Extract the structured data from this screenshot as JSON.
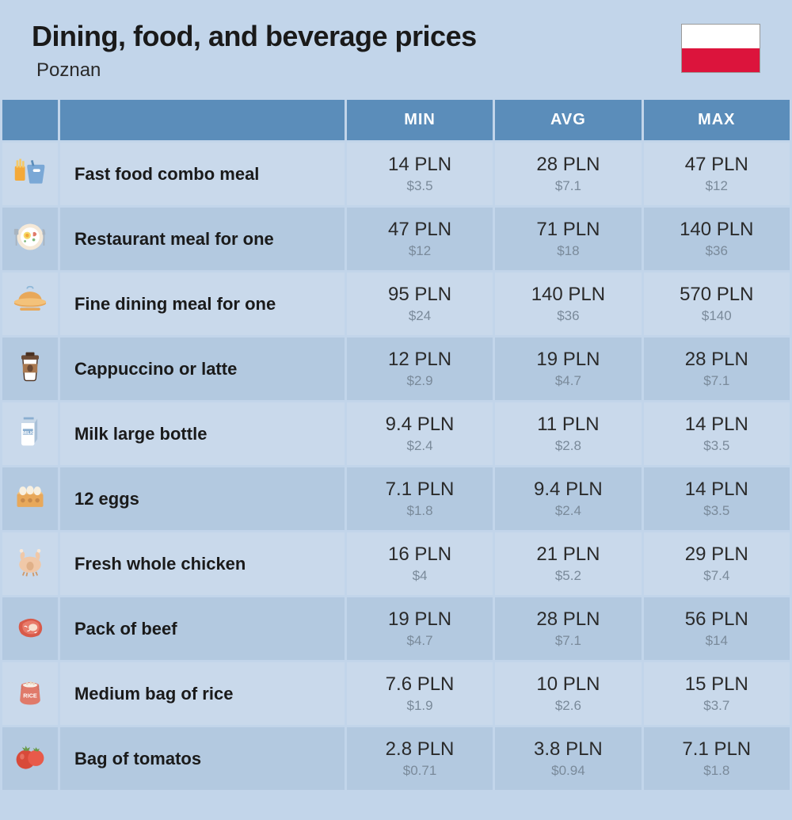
{
  "header": {
    "title": "Dining, food, and beverage prices",
    "location": "Poznan"
  },
  "flag": {
    "top_color": "#ffffff",
    "bottom_color": "#dc143c"
  },
  "columns": {
    "min": "MIN",
    "avg": "AVG",
    "max": "MAX"
  },
  "colors": {
    "page_bg": "#c2d5ea",
    "header_bg": "#5b8dba",
    "header_text": "#ffffff",
    "row_odd_bg": "#c9d9eb",
    "row_even_bg": "#b3c9e0",
    "text_primary": "#1a1a1a",
    "text_pln": "#2a2a2a",
    "text_usd": "#7a8a9a"
  },
  "rows": [
    {
      "icon": "fast-food",
      "label": "Fast food combo meal",
      "min_pln": "14 PLN",
      "min_usd": "$3.5",
      "avg_pln": "28 PLN",
      "avg_usd": "$7.1",
      "max_pln": "47 PLN",
      "max_usd": "$12"
    },
    {
      "icon": "restaurant",
      "label": "Restaurant meal for one",
      "min_pln": "47 PLN",
      "min_usd": "$12",
      "avg_pln": "71 PLN",
      "avg_usd": "$18",
      "max_pln": "140 PLN",
      "max_usd": "$36"
    },
    {
      "icon": "fine-dining",
      "label": "Fine dining meal for one",
      "min_pln": "95 PLN",
      "min_usd": "$24",
      "avg_pln": "140 PLN",
      "avg_usd": "$36",
      "max_pln": "570 PLN",
      "max_usd": "$140"
    },
    {
      "icon": "coffee",
      "label": "Cappuccino or latte",
      "min_pln": "12 PLN",
      "min_usd": "$2.9",
      "avg_pln": "19 PLN",
      "avg_usd": "$4.7",
      "max_pln": "28 PLN",
      "max_usd": "$7.1"
    },
    {
      "icon": "milk",
      "label": "Milk large bottle",
      "min_pln": "9.4 PLN",
      "min_usd": "$2.4",
      "avg_pln": "11 PLN",
      "avg_usd": "$2.8",
      "max_pln": "14 PLN",
      "max_usd": "$3.5"
    },
    {
      "icon": "eggs",
      "label": "12 eggs",
      "min_pln": "7.1 PLN",
      "min_usd": "$1.8",
      "avg_pln": "9.4 PLN",
      "avg_usd": "$2.4",
      "max_pln": "14 PLN",
      "max_usd": "$3.5"
    },
    {
      "icon": "chicken",
      "label": "Fresh whole chicken",
      "min_pln": "16 PLN",
      "min_usd": "$4",
      "avg_pln": "21 PLN",
      "avg_usd": "$5.2",
      "max_pln": "29 PLN",
      "max_usd": "$7.4"
    },
    {
      "icon": "beef",
      "label": "Pack of beef",
      "min_pln": "19 PLN",
      "min_usd": "$4.7",
      "avg_pln": "28 PLN",
      "avg_usd": "$7.1",
      "max_pln": "56 PLN",
      "max_usd": "$14"
    },
    {
      "icon": "rice",
      "label": "Medium bag of rice",
      "min_pln": "7.6 PLN",
      "min_usd": "$1.9",
      "avg_pln": "10 PLN",
      "avg_usd": "$2.6",
      "max_pln": "15 PLN",
      "max_usd": "$3.7"
    },
    {
      "icon": "tomato",
      "label": "Bag of tomatos",
      "min_pln": "2.8 PLN",
      "min_usd": "$0.71",
      "avg_pln": "3.8 PLN",
      "avg_usd": "$0.94",
      "max_pln": "7.1 PLN",
      "max_usd": "$1.8"
    }
  ]
}
